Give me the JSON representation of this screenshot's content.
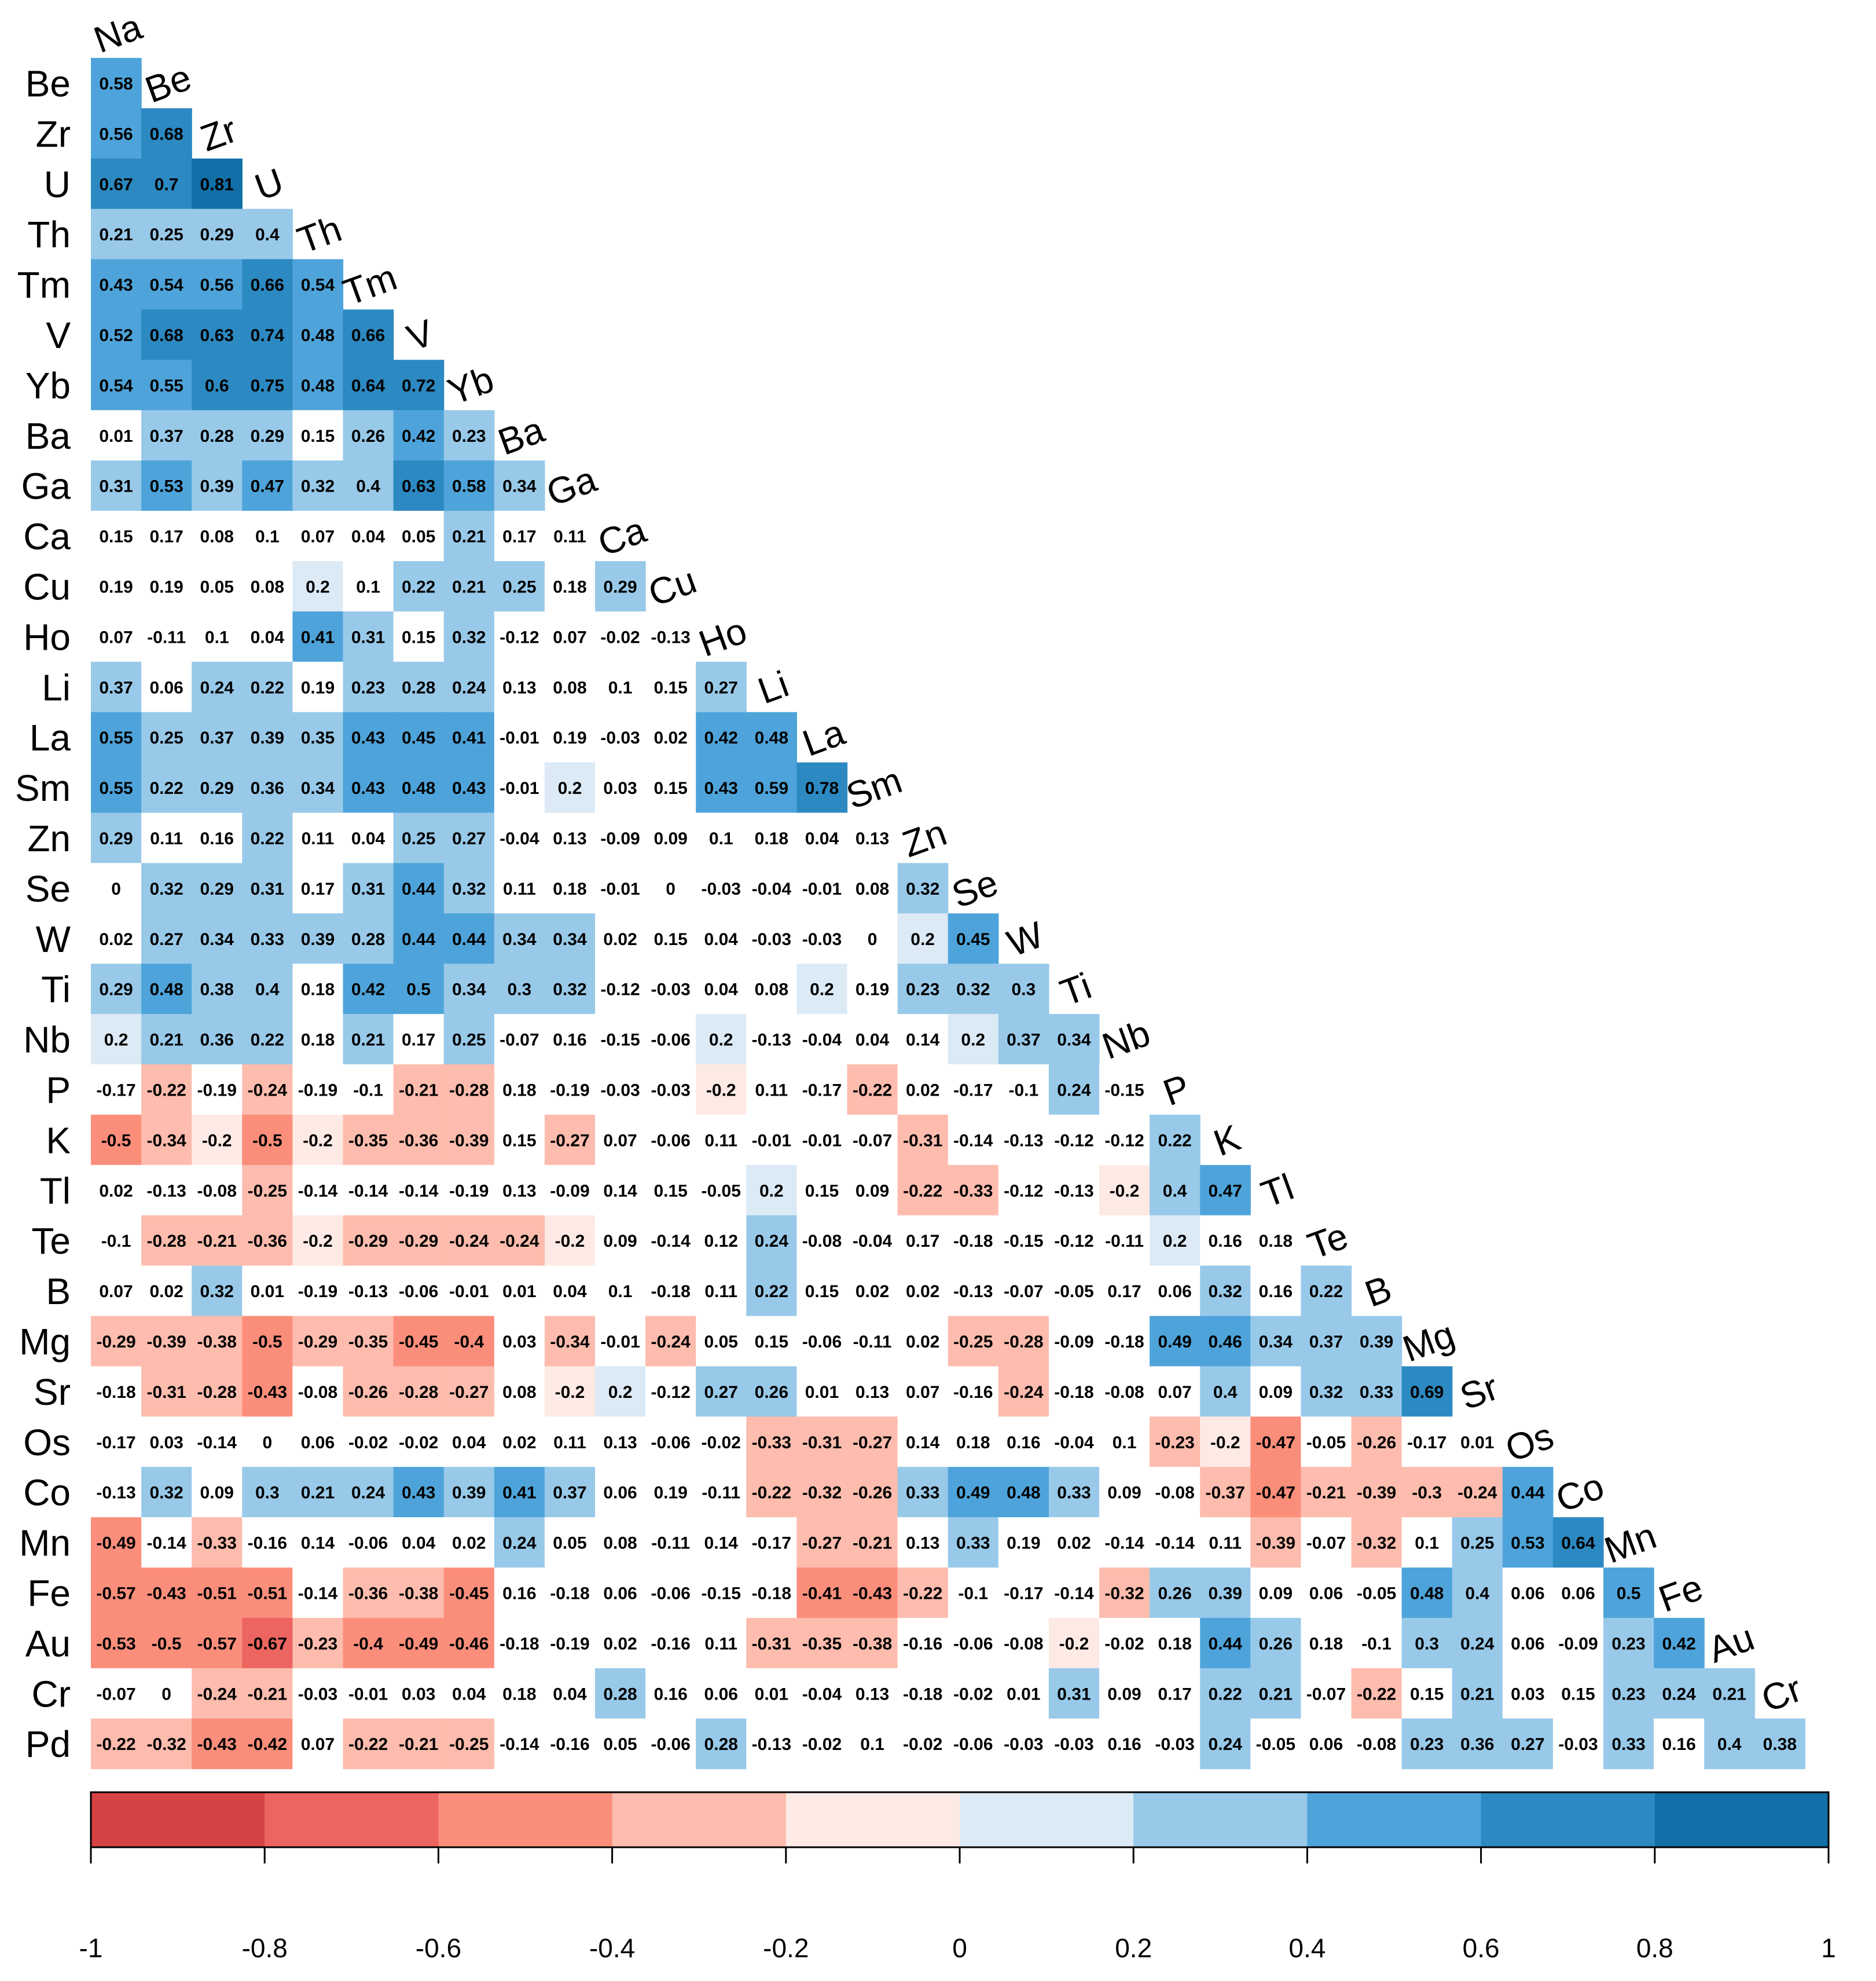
{
  "chart_data": {
    "type": "heatmap",
    "title": "",
    "xlabel": "",
    "ylabel": "",
    "column_labels": [
      "Na",
      "Be",
      "Zr",
      "U",
      "Th",
      "Tm",
      "V",
      "Yb",
      "Ba",
      "Ga",
      "Ca",
      "Cu",
      "Ho",
      "Li",
      "La",
      "Sm",
      "Zn",
      "Se",
      "W",
      "Ti",
      "Nb",
      "P",
      "K",
      "Tl",
      "Te",
      "B",
      "Mg",
      "Sr",
      "Os",
      "Co",
      "Mn",
      "Fe",
      "Au",
      "Cr"
    ],
    "row_labels": [
      "Be",
      "Zr",
      "U",
      "Th",
      "Tm",
      "V",
      "Yb",
      "Ba",
      "Ga",
      "Ca",
      "Cu",
      "Ho",
      "Li",
      "La",
      "Sm",
      "Zn",
      "Se",
      "W",
      "Ti",
      "Nb",
      "P",
      "K",
      "Tl",
      "Te",
      "B",
      "Mg",
      "Sr",
      "Os",
      "Co",
      "Mn",
      "Fe",
      "Au",
      "Cr",
      "Pd"
    ],
    "rows": [
      [
        "0.58"
      ],
      [
        "0.56",
        "0.68"
      ],
      [
        "0.67",
        "0.7",
        "0.81"
      ],
      [
        "0.21",
        "0.25",
        "0.29",
        "0.4"
      ],
      [
        "0.43",
        "0.54",
        "0.56",
        "0.66",
        "0.54"
      ],
      [
        "0.52",
        "0.68",
        "0.63",
        "0.74",
        "0.48",
        "0.66"
      ],
      [
        "0.54",
        "0.55",
        "0.6",
        "0.75",
        "0.48",
        "0.64",
        "0.72"
      ],
      [
        "0.01",
        "0.37",
        "0.28",
        "0.29",
        "0.15",
        "0.26",
        "0.42",
        "0.23"
      ],
      [
        "0.31",
        "0.53",
        "0.39",
        "0.47",
        "0.32",
        "0.4",
        "0.63",
        "0.58",
        "0.34"
      ],
      [
        "0.15",
        "0.17",
        "0.08",
        "0.1",
        "0.07",
        "0.04",
        "0.05",
        "0.21",
        "0.17",
        "0.11"
      ],
      [
        "0.19",
        "0.19",
        "0.05",
        "0.08",
        "0.2",
        "0.1",
        "0.22",
        "0.21",
        "0.25",
        "0.18",
        "0.29"
      ],
      [
        "0.07",
        "-0.11",
        "0.1",
        "0.04",
        "0.41",
        "0.31",
        "0.15",
        "0.32",
        "-0.12",
        "0.07",
        "-0.02",
        "-0.13"
      ],
      [
        "0.37",
        "0.06",
        "0.24",
        "0.22",
        "0.19",
        "0.23",
        "0.28",
        "0.24",
        "0.13",
        "0.08",
        "0.1",
        "0.15",
        "0.27"
      ],
      [
        "0.55",
        "0.25",
        "0.37",
        "0.39",
        "0.35",
        "0.43",
        "0.45",
        "0.41",
        "-0.01",
        "0.19",
        "-0.03",
        "0.02",
        "0.42",
        "0.48"
      ],
      [
        "0.55",
        "0.22",
        "0.29",
        "0.36",
        "0.34",
        "0.43",
        "0.48",
        "0.43",
        "-0.01",
        "0.2",
        "0.03",
        "0.15",
        "0.43",
        "0.59",
        "0.78"
      ],
      [
        "0.29",
        "0.11",
        "0.16",
        "0.22",
        "0.11",
        "0.04",
        "0.25",
        "0.27",
        "-0.04",
        "0.13",
        "-0.09",
        "0.09",
        "0.1",
        "0.18",
        "0.04",
        "0.13"
      ],
      [
        "0",
        "0.32",
        "0.29",
        "0.31",
        "0.17",
        "0.31",
        "0.44",
        "0.32",
        "0.11",
        "0.18",
        "-0.01",
        "0",
        "-0.03",
        "-0.04",
        "-0.01",
        "0.08",
        "0.32"
      ],
      [
        "0.02",
        "0.27",
        "0.34",
        "0.33",
        "0.39",
        "0.28",
        "0.44",
        "0.44",
        "0.34",
        "0.34",
        "0.02",
        "0.15",
        "0.04",
        "-0.03",
        "-0.03",
        "0",
        "0.2",
        "0.45"
      ],
      [
        "0.29",
        "0.48",
        "0.38",
        "0.4",
        "0.18",
        "0.42",
        "0.5",
        "0.34",
        "0.3",
        "0.32",
        "-0.12",
        "-0.03",
        "0.04",
        "0.08",
        "0.2",
        "0.19",
        "0.23",
        "0.32",
        "0.3"
      ],
      [
        "0.2",
        "0.21",
        "0.36",
        "0.22",
        "0.18",
        "0.21",
        "0.17",
        "0.25",
        "-0.07",
        "0.16",
        "-0.15",
        "-0.06",
        "0.2",
        "-0.13",
        "-0.04",
        "0.04",
        "0.14",
        "0.2",
        "0.37",
        "0.34"
      ],
      [
        "-0.17",
        "-0.22",
        "-0.19",
        "-0.24",
        "-0.19",
        "-0.1",
        "-0.21",
        "-0.28",
        "0.18",
        "-0.19",
        "-0.03",
        "-0.03",
        "-0.2",
        "0.11",
        "-0.17",
        "-0.22",
        "0.02",
        "-0.17",
        "-0.1",
        "0.24",
        "-0.15"
      ],
      [
        "-0.5",
        "-0.34",
        "-0.2",
        "-0.5",
        "-0.2",
        "-0.35",
        "-0.36",
        "-0.39",
        "0.15",
        "-0.27",
        "0.07",
        "-0.06",
        "0.11",
        "-0.01",
        "-0.01",
        "-0.07",
        "-0.31",
        "-0.14",
        "-0.13",
        "-0.12",
        "-0.12",
        "0.22"
      ],
      [
        "0.02",
        "-0.13",
        "-0.08",
        "-0.25",
        "-0.14",
        "-0.14",
        "-0.14",
        "-0.19",
        "0.13",
        "-0.09",
        "0.14",
        "0.15",
        "-0.05",
        "0.2",
        "0.15",
        "0.09",
        "-0.22",
        "-0.33",
        "-0.12",
        "-0.13",
        "-0.2",
        "0.4",
        "0.47"
      ],
      [
        "-0.1",
        "-0.28",
        "-0.21",
        "-0.36",
        "-0.2",
        "-0.29",
        "-0.29",
        "-0.24",
        "-0.24",
        "-0.2",
        "0.09",
        "-0.14",
        "0.12",
        "0.24",
        "-0.08",
        "-0.04",
        "0.17",
        "-0.18",
        "-0.15",
        "-0.12",
        "-0.11",
        "0.2",
        "0.16",
        "0.18"
      ],
      [
        "0.07",
        "0.02",
        "0.32",
        "0.01",
        "-0.19",
        "-0.13",
        "-0.06",
        "-0.01",
        "0.01",
        "0.04",
        "0.1",
        "-0.18",
        "0.11",
        "0.22",
        "0.15",
        "0.02",
        "0.02",
        "-0.13",
        "-0.07",
        "-0.05",
        "0.17",
        "0.06",
        "0.32",
        "0.16",
        "0.22"
      ],
      [
        "-0.29",
        "-0.39",
        "-0.38",
        "-0.5",
        "-0.29",
        "-0.35",
        "-0.45",
        "-0.4",
        "0.03",
        "-0.34",
        "-0.01",
        "-0.24",
        "0.05",
        "0.15",
        "-0.06",
        "-0.11",
        "0.02",
        "-0.25",
        "-0.28",
        "-0.09",
        "-0.18",
        "0.49",
        "0.46",
        "0.34",
        "0.37",
        "0.39"
      ],
      [
        "-0.18",
        "-0.31",
        "-0.28",
        "-0.43",
        "-0.08",
        "-0.26",
        "-0.28",
        "-0.27",
        "0.08",
        "-0.2",
        "0.2",
        "-0.12",
        "0.27",
        "0.26",
        "0.01",
        "0.13",
        "0.07",
        "-0.16",
        "-0.24",
        "-0.18",
        "-0.08",
        "0.07",
        "0.4",
        "0.09",
        "0.32",
        "0.33",
        "0.69"
      ],
      [
        "-0.17",
        "0.03",
        "-0.14",
        "0",
        "0.06",
        "-0.02",
        "-0.02",
        "0.04",
        "0.02",
        "0.11",
        "0.13",
        "-0.06",
        "-0.02",
        "-0.33",
        "-0.31",
        "-0.27",
        "0.14",
        "0.18",
        "0.16",
        "-0.04",
        "0.1",
        "-0.23",
        "-0.2",
        "-0.47",
        "-0.05",
        "-0.26",
        "-0.17",
        "0.01"
      ],
      [
        "-0.13",
        "0.32",
        "0.09",
        "0.3",
        "0.21",
        "0.24",
        "0.43",
        "0.39",
        "0.41",
        "0.37",
        "0.06",
        "0.19",
        "-0.11",
        "-0.22",
        "-0.32",
        "-0.26",
        "0.33",
        "0.49",
        "0.48",
        "0.33",
        "0.09",
        "-0.08",
        "-0.37",
        "-0.47",
        "-0.21",
        "-0.39",
        "-0.3",
        "-0.24",
        "0.44"
      ],
      [
        "-0.49",
        "-0.14",
        "-0.33",
        "-0.16",
        "0.14",
        "-0.06",
        "0.04",
        "0.02",
        "0.24",
        "0.05",
        "0.08",
        "-0.11",
        "0.14",
        "-0.17",
        "-0.27",
        "-0.21",
        "0.13",
        "0.33",
        "0.19",
        "0.02",
        "-0.14",
        "-0.14",
        "0.11",
        "-0.39",
        "-0.07",
        "-0.32",
        "0.1",
        "0.25",
        "0.53",
        "0.64"
      ],
      [
        "-0.57",
        "-0.43",
        "-0.51",
        "-0.51",
        "-0.14",
        "-0.36",
        "-0.38",
        "-0.45",
        "0.16",
        "-0.18",
        "0.06",
        "-0.06",
        "-0.15",
        "-0.18",
        "-0.41",
        "-0.43",
        "-0.22",
        "-0.1",
        "-0.17",
        "-0.14",
        "-0.32",
        "0.26",
        "0.39",
        "0.09",
        "0.06",
        "-0.05",
        "0.48",
        "0.4",
        "0.06",
        "0.06",
        "0.5"
      ],
      [
        "-0.53",
        "-0.5",
        "-0.57",
        "-0.67",
        "-0.23",
        "-0.4",
        "-0.49",
        "-0.46",
        "-0.18",
        "-0.19",
        "0.02",
        "-0.16",
        "0.11",
        "-0.31",
        "-0.35",
        "-0.38",
        "-0.16",
        "-0.06",
        "-0.08",
        "-0.2",
        "-0.02",
        "0.18",
        "0.44",
        "0.26",
        "0.18",
        "-0.1",
        "0.3",
        "0.24",
        "0.06",
        "-0.09",
        "0.23",
        "0.42"
      ],
      [
        "-0.07",
        "0",
        "-0.24",
        "-0.21",
        "-0.03",
        "-0.01",
        "0.03",
        "0.04",
        "0.18",
        "0.04",
        "0.28",
        "0.16",
        "0.06",
        "0.01",
        "-0.04",
        "0.13",
        "-0.18",
        "-0.02",
        "0.01",
        "0.31",
        "0.09",
        "0.17",
        "0.22",
        "0.21",
        "-0.07",
        "-0.22",
        "0.15",
        "0.21",
        "0.03",
        "0.15",
        "0.23",
        "0.24",
        "0.21"
      ],
      [
        "-0.22",
        "-0.32",
        "-0.43",
        "-0.42",
        "0.07",
        "-0.22",
        "-0.21",
        "-0.25",
        "-0.14",
        "-0.16",
        "0.05",
        "-0.06",
        "0.28",
        "-0.13",
        "-0.02",
        "0.1",
        "-0.02",
        "-0.06",
        "-0.03",
        "-0.03",
        "0.16",
        "-0.03",
        "0.24",
        "-0.05",
        "0.06",
        "-0.08",
        "0.23",
        "0.36",
        "0.27",
        "-0.03",
        "0.33",
        "0.16",
        "0.4",
        "0.38"
      ]
    ],
    "colorbar": {
      "range": [
        -1,
        1
      ],
      "ticks": [
        "-1",
        "-0.8",
        "-0.6",
        "-0.4",
        "-0.2",
        "0",
        "0.2",
        "0.4",
        "0.6",
        "0.8",
        "1"
      ],
      "colors": [
        "#d64345",
        "#ec6560",
        "#fb8e7b",
        "#fdbcad",
        "#feeae4",
        "#dceaf6",
        "#98c9e9",
        "#4ea4da",
        "#2c89c1",
        "#126fa7"
      ]
    }
  }
}
